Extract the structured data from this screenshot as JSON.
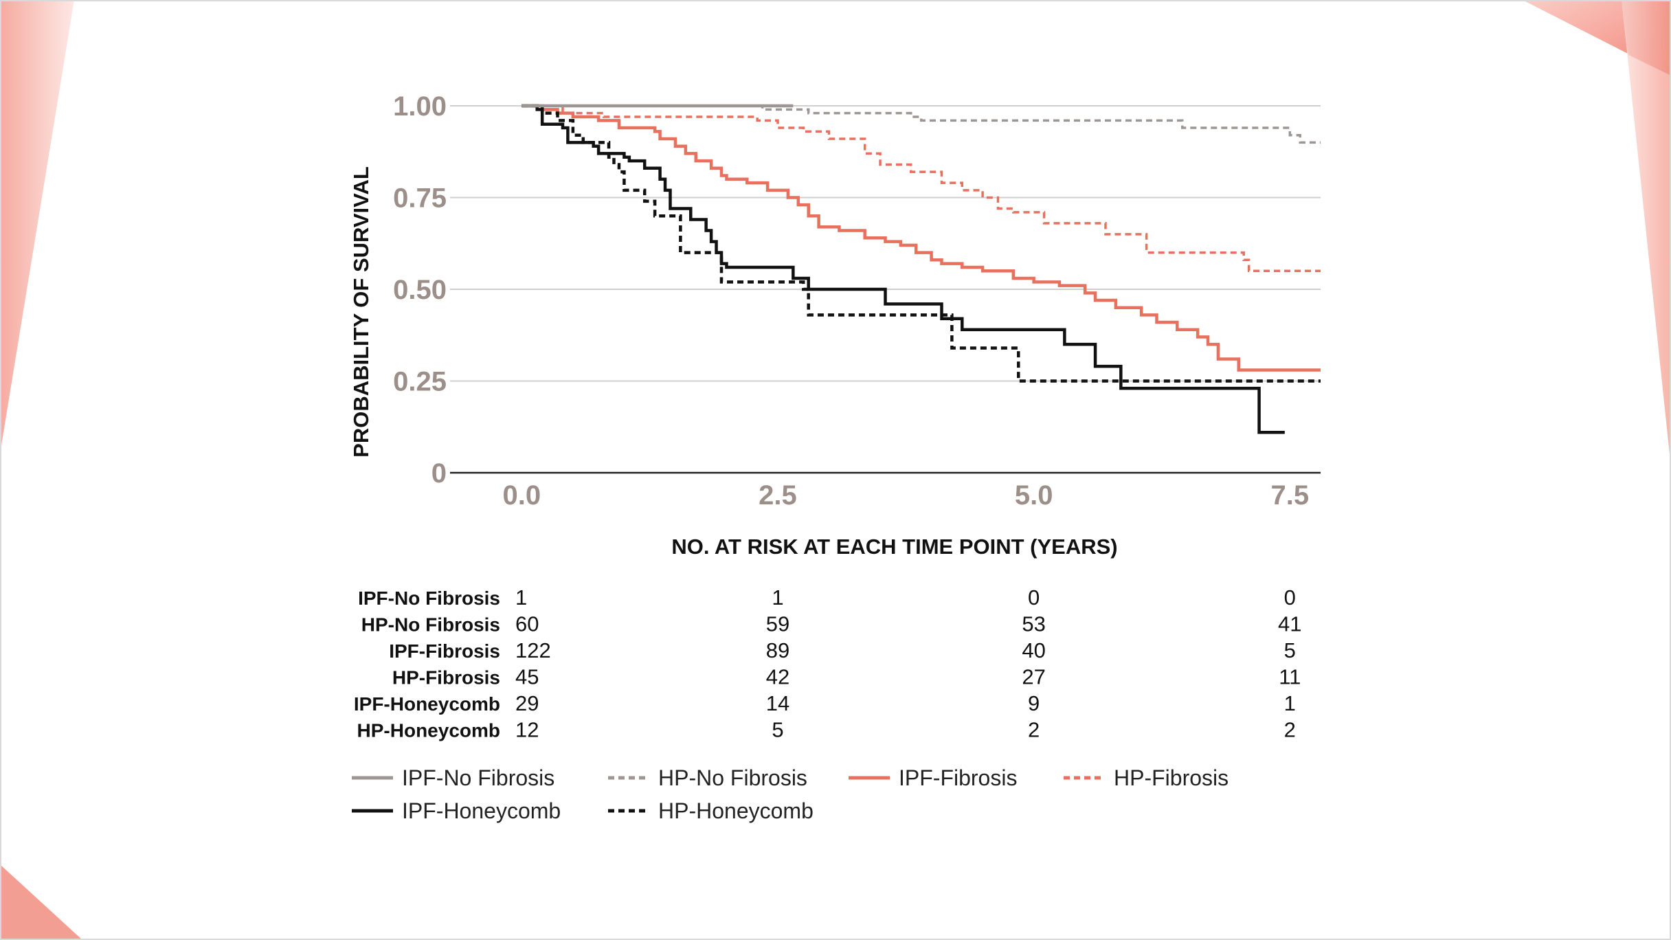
{
  "chart_data": {
    "type": "line",
    "subtype": "kaplan-meier",
    "ylabel": "PROBABILITY OF SURVIVAL",
    "xlabel": "NO. AT RISK AT EACH TIME POINT (YEARS)",
    "xlim": [
      -0.7,
      7.8
    ],
    "ylim": [
      0,
      1
    ],
    "x_ticks": [
      0,
      2.5,
      5,
      7.5
    ],
    "x_tick_labels": [
      "0.0",
      "2.5",
      "5.0",
      "7.5"
    ],
    "y_ticks": [
      0,
      0.25,
      0.5,
      0.75,
      1.0
    ],
    "y_tick_labels": [
      "0",
      "0.25",
      "0.50",
      "0.75",
      "1.00"
    ],
    "grid": "horizontal",
    "colors": {
      "gray": "#9e9693",
      "salmon": "#e8705e",
      "black": "#111111",
      "grid": "#cfcfcf",
      "tick_text": "#9c8f8a"
    },
    "series": [
      {
        "name": "IPF-No Fibrosis",
        "color": "#9e9693",
        "dash": false,
        "steps": [
          [
            0,
            1.0
          ],
          [
            2.65,
            1.0
          ]
        ]
      },
      {
        "name": "HP-No Fibrosis",
        "color": "#9e9693",
        "dash": true,
        "steps": [
          [
            0,
            1.0
          ],
          [
            2.35,
            0.99
          ],
          [
            2.8,
            0.98
          ],
          [
            3.8,
            0.97
          ],
          [
            3.9,
            0.96
          ],
          [
            6.45,
            0.94
          ],
          [
            7.5,
            0.92
          ],
          [
            7.6,
            0.9
          ],
          [
            7.8,
            0.9
          ]
        ]
      },
      {
        "name": "IPF-Fibrosis",
        "color": "#e8705e",
        "dash": false,
        "steps": [
          [
            0,
            1.0
          ],
          [
            0.2,
            0.99
          ],
          [
            0.35,
            0.98
          ],
          [
            0.5,
            0.97
          ],
          [
            0.75,
            0.96
          ],
          [
            0.95,
            0.94
          ],
          [
            1.3,
            0.93
          ],
          [
            1.35,
            0.91
          ],
          [
            1.5,
            0.89
          ],
          [
            1.6,
            0.87
          ],
          [
            1.7,
            0.85
          ],
          [
            1.85,
            0.83
          ],
          [
            1.95,
            0.81
          ],
          [
            2.0,
            0.8
          ],
          [
            2.2,
            0.79
          ],
          [
            2.4,
            0.77
          ],
          [
            2.6,
            0.75
          ],
          [
            2.7,
            0.73
          ],
          [
            2.8,
            0.7
          ],
          [
            2.9,
            0.67
          ],
          [
            3.1,
            0.66
          ],
          [
            3.35,
            0.64
          ],
          [
            3.55,
            0.63
          ],
          [
            3.7,
            0.62
          ],
          [
            3.85,
            0.6
          ],
          [
            4.0,
            0.58
          ],
          [
            4.1,
            0.57
          ],
          [
            4.3,
            0.56
          ],
          [
            4.5,
            0.55
          ],
          [
            4.8,
            0.53
          ],
          [
            5.0,
            0.52
          ],
          [
            5.25,
            0.51
          ],
          [
            5.5,
            0.49
          ],
          [
            5.6,
            0.47
          ],
          [
            5.8,
            0.45
          ],
          [
            6.05,
            0.43
          ],
          [
            6.2,
            0.41
          ],
          [
            6.4,
            0.39
          ],
          [
            6.6,
            0.37
          ],
          [
            6.7,
            0.35
          ],
          [
            6.8,
            0.31
          ],
          [
            7.0,
            0.28
          ],
          [
            7.8,
            0.28
          ]
        ]
      },
      {
        "name": "HP-Fibrosis",
        "color": "#e8705e",
        "dash": true,
        "steps": [
          [
            0,
            1.0
          ],
          [
            0.4,
            0.98
          ],
          [
            0.8,
            0.97
          ],
          [
            2.3,
            0.96
          ],
          [
            2.5,
            0.94
          ],
          [
            2.75,
            0.93
          ],
          [
            3.0,
            0.91
          ],
          [
            3.35,
            0.87
          ],
          [
            3.5,
            0.84
          ],
          [
            3.8,
            0.82
          ],
          [
            4.1,
            0.79
          ],
          [
            4.3,
            0.77
          ],
          [
            4.5,
            0.75
          ],
          [
            4.65,
            0.72
          ],
          [
            4.8,
            0.71
          ],
          [
            5.1,
            0.68
          ],
          [
            5.7,
            0.65
          ],
          [
            6.1,
            0.6
          ],
          [
            7.05,
            0.58
          ],
          [
            7.1,
            0.55
          ],
          [
            7.8,
            0.55
          ]
        ]
      },
      {
        "name": "IPF-Honeycomb",
        "color": "#111111",
        "dash": false,
        "steps": [
          [
            0,
            1.0
          ],
          [
            0.15,
            0.99
          ],
          [
            0.2,
            0.95
          ],
          [
            0.4,
            0.94
          ],
          [
            0.45,
            0.9
          ],
          [
            0.7,
            0.89
          ],
          [
            0.75,
            0.87
          ],
          [
            1.0,
            0.86
          ],
          [
            1.05,
            0.85
          ],
          [
            1.2,
            0.83
          ],
          [
            1.35,
            0.8
          ],
          [
            1.4,
            0.77
          ],
          [
            1.45,
            0.72
          ],
          [
            1.65,
            0.69
          ],
          [
            1.8,
            0.66
          ],
          [
            1.85,
            0.63
          ],
          [
            1.9,
            0.6
          ],
          [
            1.95,
            0.57
          ],
          [
            2.0,
            0.56
          ],
          [
            2.65,
            0.53
          ],
          [
            2.8,
            0.5
          ],
          [
            3.55,
            0.46
          ],
          [
            4.1,
            0.42
          ],
          [
            4.3,
            0.39
          ],
          [
            5.3,
            0.35
          ],
          [
            5.6,
            0.29
          ],
          [
            5.85,
            0.23
          ],
          [
            7.2,
            0.11
          ],
          [
            7.45,
            0.11
          ]
        ]
      },
      {
        "name": "HP-Honeycomb",
        "color": "#111111",
        "dash": true,
        "steps": [
          [
            0,
            1.0
          ],
          [
            0.2,
            0.98
          ],
          [
            0.35,
            0.96
          ],
          [
            0.5,
            0.92
          ],
          [
            0.6,
            0.9
          ],
          [
            0.85,
            0.86
          ],
          [
            0.9,
            0.84
          ],
          [
            0.95,
            0.82
          ],
          [
            1.0,
            0.77
          ],
          [
            1.2,
            0.74
          ],
          [
            1.3,
            0.7
          ],
          [
            1.55,
            0.6
          ],
          [
            1.95,
            0.52
          ],
          [
            2.75,
            0.5
          ],
          [
            2.8,
            0.43
          ],
          [
            4.2,
            0.34
          ],
          [
            4.85,
            0.25
          ],
          [
            7.8,
            0.25
          ]
        ]
      }
    ],
    "risk_table": {
      "title": "NO. AT RISK AT EACH TIME POINT (YEARS)",
      "rows": [
        {
          "name": "IPF-No Fibrosis",
          "values": [
            "1",
            "1",
            "0",
            "0"
          ]
        },
        {
          "name": "HP-No Fibrosis",
          "values": [
            "60",
            "59",
            "53",
            "41"
          ]
        },
        {
          "name": "IPF-Fibrosis",
          "values": [
            "122",
            "89",
            "40",
            "5"
          ]
        },
        {
          "name": "HP-Fibrosis",
          "values": [
            "45",
            "42",
            "27",
            "11"
          ]
        },
        {
          "name": "IPF-Honeycomb",
          "values": [
            "29",
            "14",
            "9",
            "1"
          ]
        },
        {
          "name": "HP-Honeycomb",
          "values": [
            "12",
            "5",
            "2",
            "2"
          ]
        }
      ]
    },
    "legend": [
      {
        "label": "IPF-No Fibrosis",
        "color": "#9e9693",
        "dash": false
      },
      {
        "label": "HP-No Fibrosis",
        "color": "#9e9693",
        "dash": true
      },
      {
        "label": "IPF-Fibrosis",
        "color": "#e8705e",
        "dash": false
      },
      {
        "label": "HP-Fibrosis",
        "color": "#e8705e",
        "dash": true
      },
      {
        "label": "IPF-Honeycomb",
        "color": "#111111",
        "dash": false
      },
      {
        "label": "HP-Honeycomb",
        "color": "#111111",
        "dash": true
      }
    ],
    "legend_position": "bottom"
  },
  "decor": {
    "accent_light": "#fbd3cc",
    "accent_mid": "#f2998c",
    "accent_dark": "#e2574a"
  }
}
